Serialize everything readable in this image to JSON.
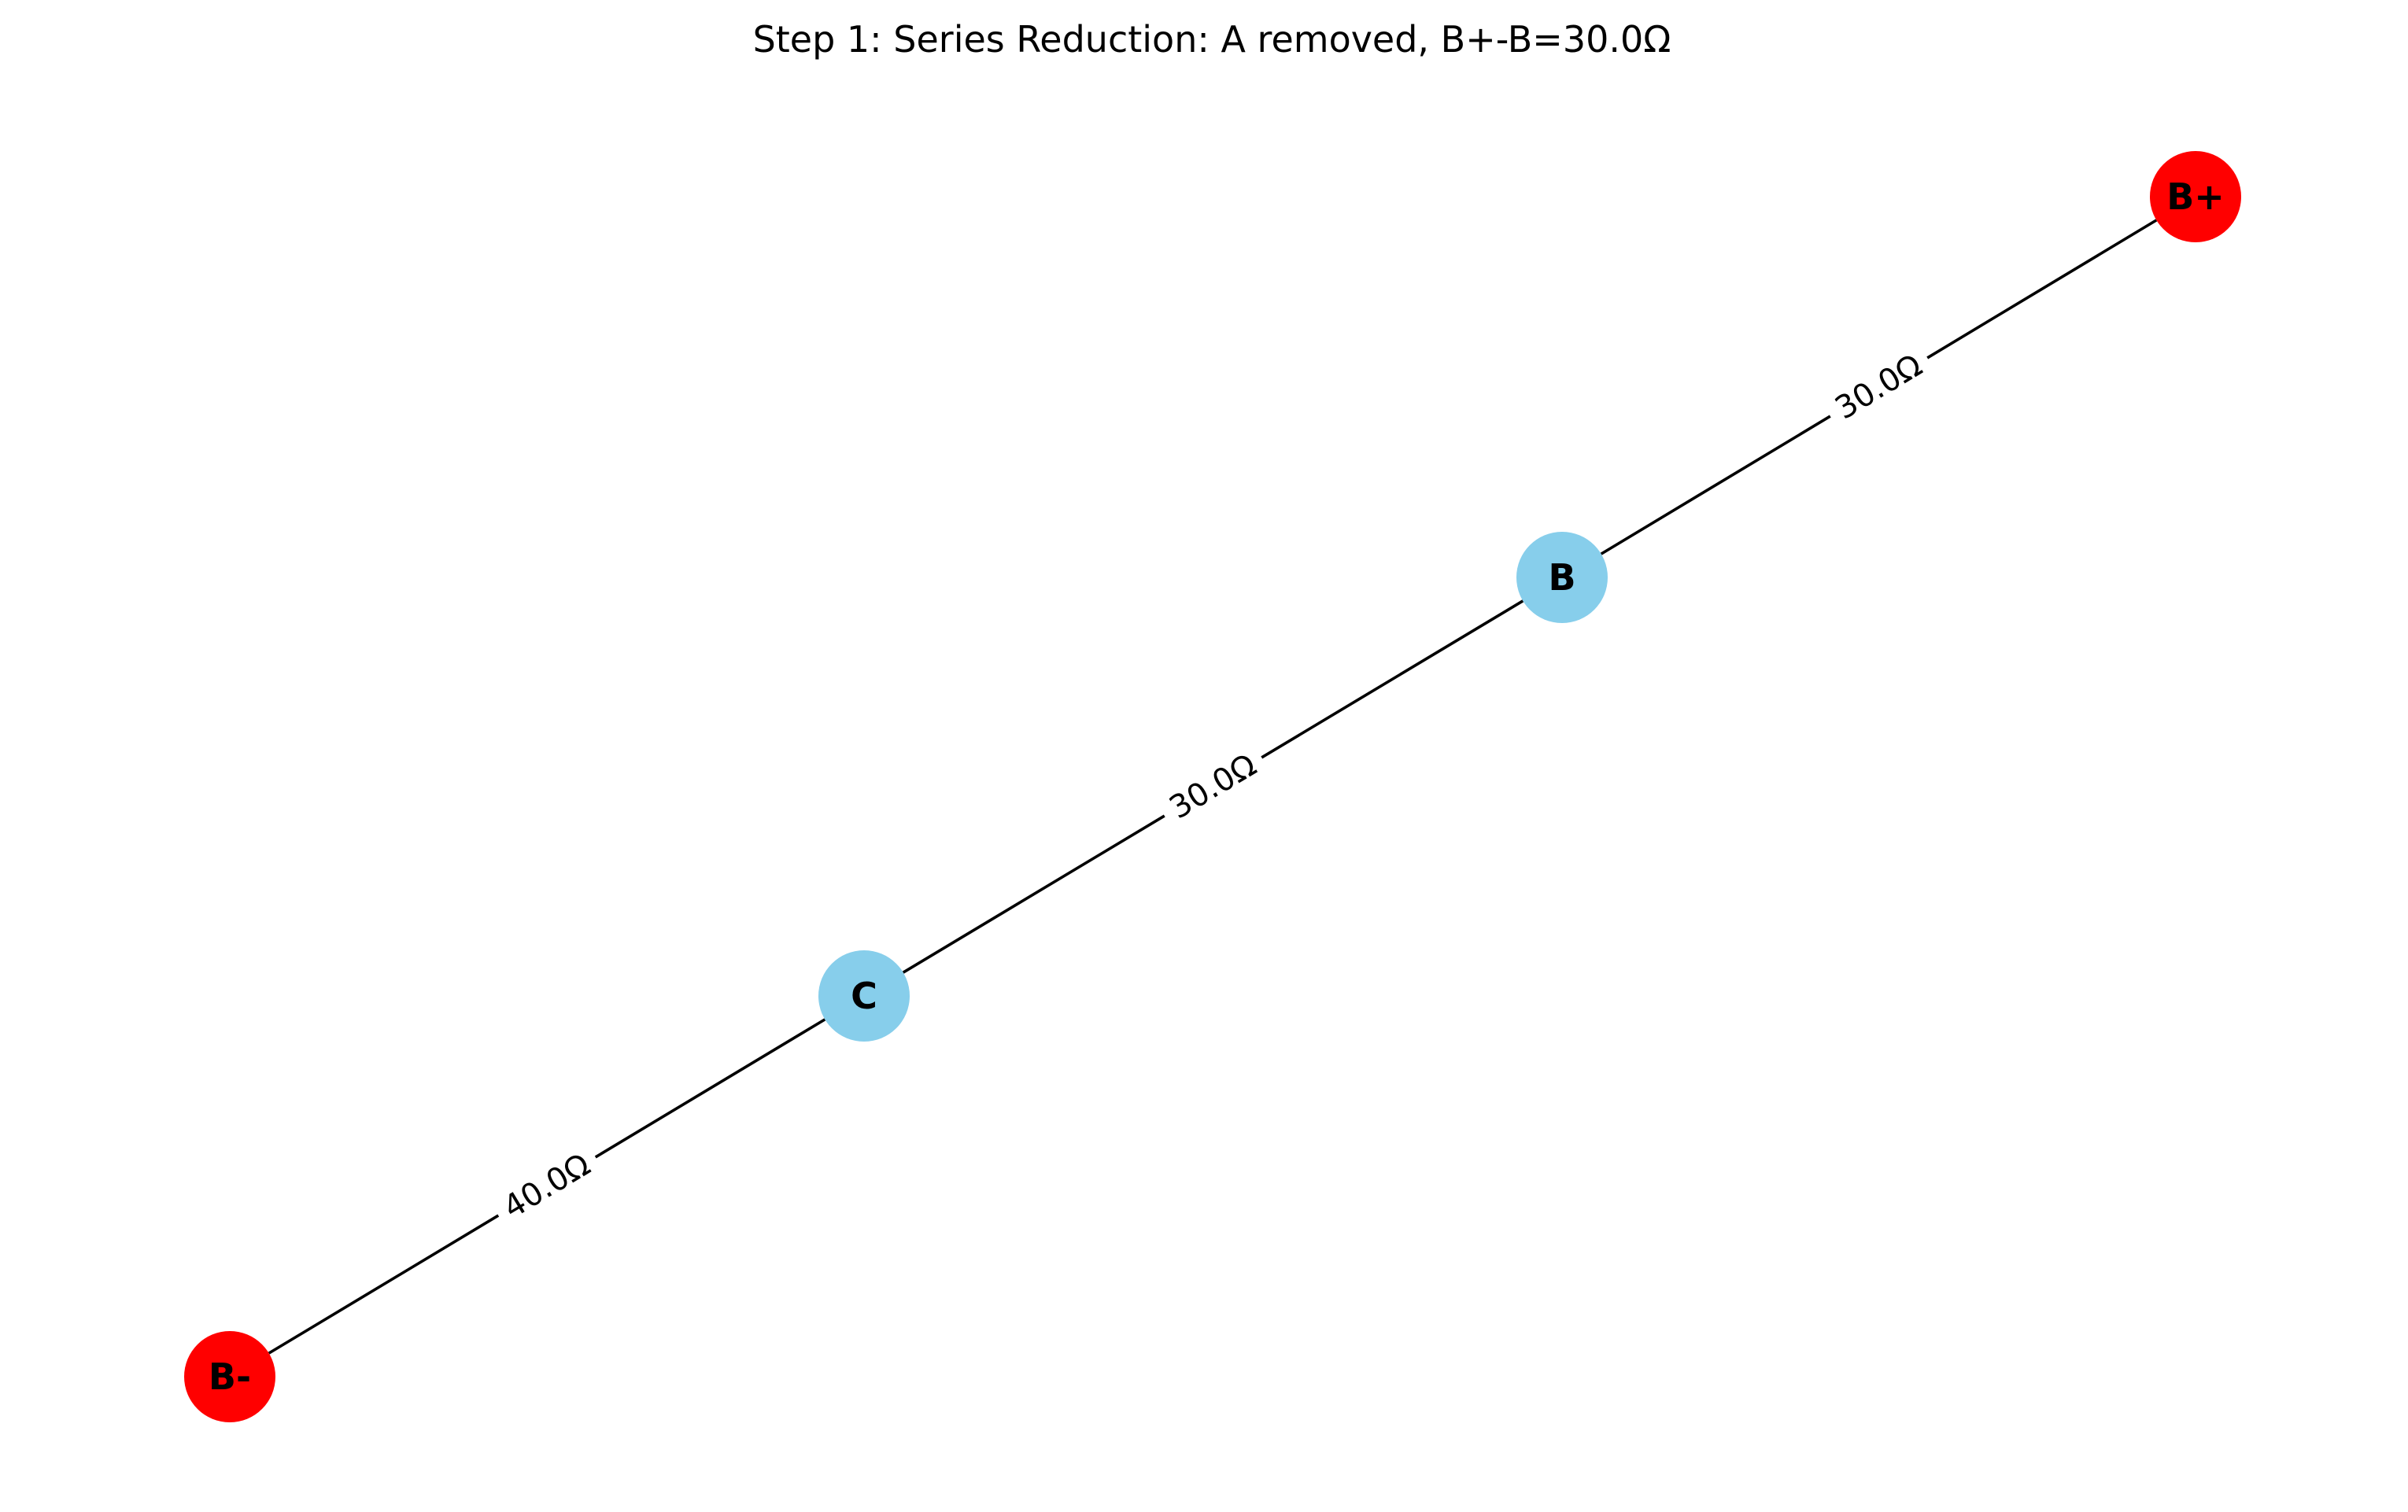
{
  "title": "Step 1: Series Reduction: A removed, B+-B=30.0Ω",
  "nodes": [
    {
      "id": "B+",
      "label": "B+",
      "color": "#ff0000"
    },
    {
      "id": "B",
      "label": "B",
      "color": "#87ceeb"
    },
    {
      "id": "C",
      "label": "C",
      "color": "#87ceeb"
    },
    {
      "id": "B-",
      "label": "B-",
      "color": "#ff0000"
    }
  ],
  "edges": [
    {
      "from": "B+",
      "to": "B",
      "label": "30.0Ω"
    },
    {
      "from": "B",
      "to": "C",
      "label": "30.0Ω"
    },
    {
      "from": "C",
      "to": "B-",
      "label": "40.0Ω"
    }
  ]
}
